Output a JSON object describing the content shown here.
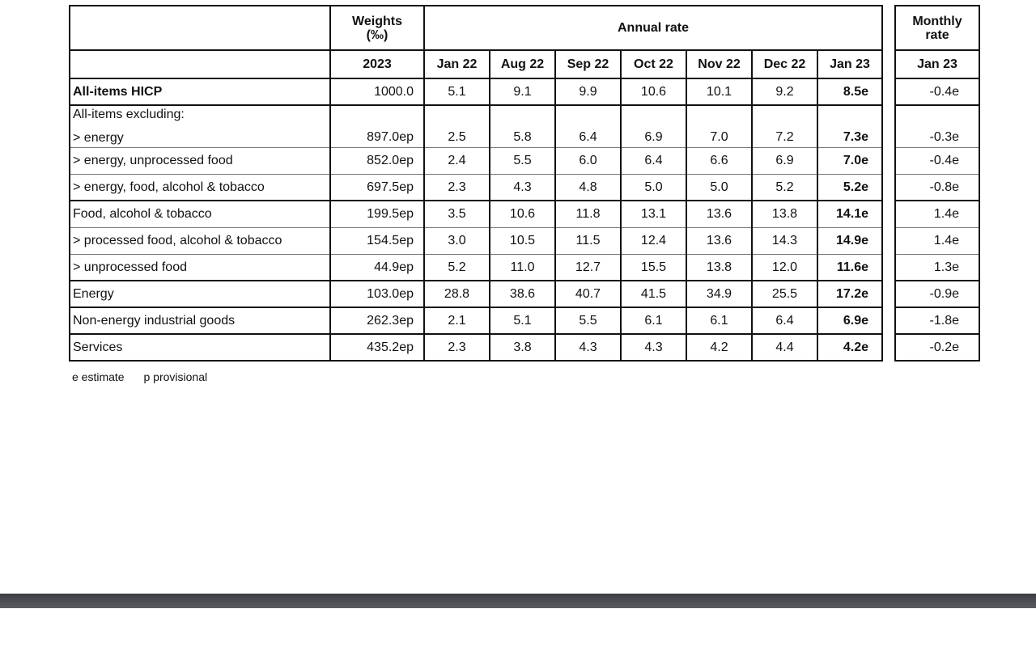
{
  "headers": {
    "weights_line1": "Weights",
    "weights_line2": "(‰)",
    "annual_rate": "Annual rate",
    "monthly_line1": "Monthly",
    "monthly_line2": "rate",
    "weights_year": "2023",
    "months": [
      "Jan 22",
      "Aug 22",
      "Sep 22",
      "Oct 22",
      "Nov 22",
      "Dec 22",
      "Jan 23"
    ],
    "monthly_month": "Jan 23"
  },
  "rows": [
    {
      "label": "All-items HICP",
      "weight": "1000.0",
      "values": [
        "5.1",
        "9.1",
        "9.9",
        "10.6",
        "10.1",
        "9.2",
        "8.5e"
      ],
      "monthly": "-0.4e"
    },
    {
      "group_label": "All-items excluding:",
      "label": "> energy",
      "weight": "897.0ep",
      "values": [
        "2.5",
        "5.8",
        "6.4",
        "6.9",
        "7.0",
        "7.2",
        "7.3e"
      ],
      "monthly": "-0.3e"
    },
    {
      "label": "> energy, unprocessed food",
      "weight": "852.0ep",
      "values": [
        "2.4",
        "5.5",
        "6.0",
        "6.4",
        "6.6",
        "6.9",
        "7.0e"
      ],
      "monthly": "-0.4e"
    },
    {
      "label": "> energy, food, alcohol & tobacco",
      "weight": "697.5ep",
      "values": [
        "2.3",
        "4.3",
        "4.8",
        "5.0",
        "5.0",
        "5.2",
        "5.2e"
      ],
      "monthly": "-0.8e"
    },
    {
      "label": "Food, alcohol & tobacco",
      "weight": "199.5ep",
      "values": [
        "3.5",
        "10.6",
        "11.8",
        "13.1",
        "13.6",
        "13.8",
        "14.1e"
      ],
      "monthly": "1.4e"
    },
    {
      "label": "> processed food, alcohol & tobacco",
      "weight": "154.5ep",
      "values": [
        "3.0",
        "10.5",
        "11.5",
        "12.4",
        "13.6",
        "14.3",
        "14.9e"
      ],
      "monthly": "1.4e"
    },
    {
      "label": "> unprocessed food",
      "weight": "44.9ep",
      "values": [
        "5.2",
        "11.0",
        "12.7",
        "15.5",
        "13.8",
        "12.0",
        "11.6e"
      ],
      "monthly": "1.3e"
    },
    {
      "label": "Energy",
      "weight": "103.0ep",
      "values": [
        "28.8",
        "38.6",
        "40.7",
        "41.5",
        "34.9",
        "25.5",
        "17.2e"
      ],
      "monthly": "-0.9e"
    },
    {
      "label": "Non-energy industrial goods",
      "weight": "262.3ep",
      "values": [
        "2.1",
        "5.1",
        "5.5",
        "6.1",
        "6.1",
        "6.4",
        "6.9e"
      ],
      "monthly": "-1.8e"
    },
    {
      "label": "Services",
      "weight": "435.2ep",
      "values": [
        "2.3",
        "3.8",
        "4.3",
        "4.3",
        "4.2",
        "4.4",
        "4.2e"
      ],
      "monthly": "-0.2e"
    }
  ],
  "notes": {
    "estimate": "e estimate",
    "provisional": "p provisional"
  },
  "colors": {
    "border": "#111111",
    "bottom_bar": "#45484c"
  }
}
